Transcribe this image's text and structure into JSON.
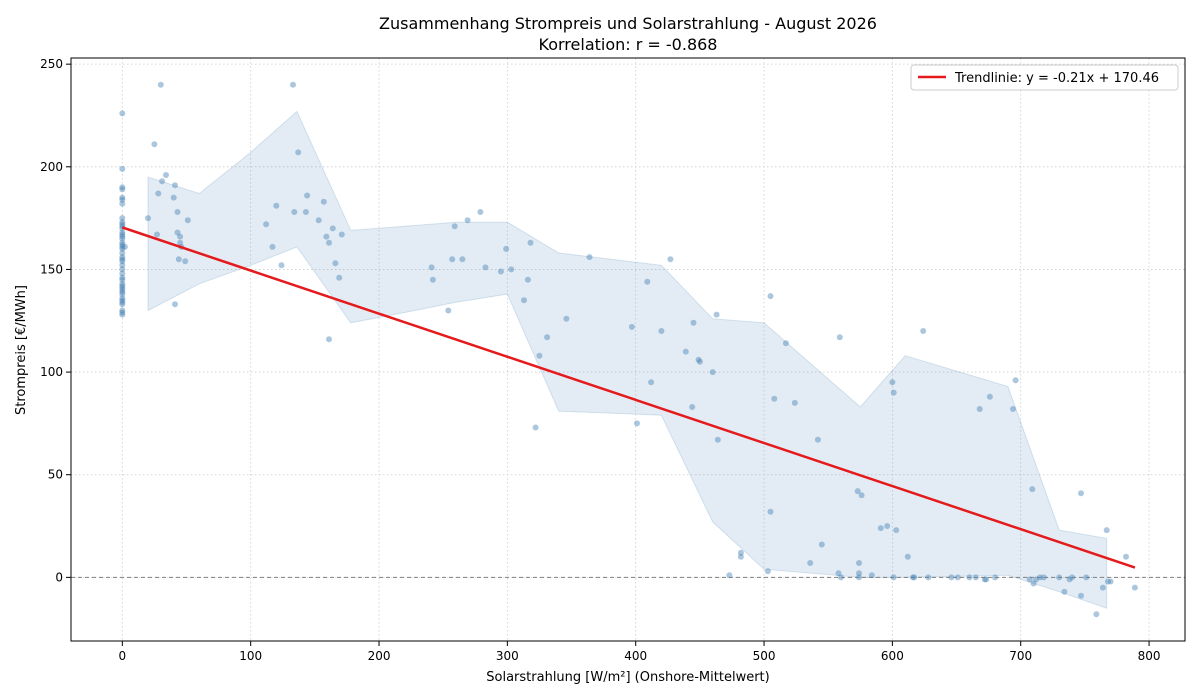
{
  "chart_data": {
    "type": "scatter",
    "title": "Zusammenhang Strompreis und Solarstrahlung - August 2026",
    "subtitle": "Korrelation: r = -0.868",
    "xlabel": "Solarstrahlung [W/m²] (Onshore-Mittelwert)",
    "ylabel": "Strompreis [€/MWh]",
    "xlim": [
      -40,
      828
    ],
    "ylim": [
      -31,
      253
    ],
    "xticks": [
      0,
      100,
      200,
      300,
      400,
      500,
      600,
      700,
      800
    ],
    "yticks": [
      0,
      50,
      100,
      150,
      200,
      250
    ],
    "grid": true,
    "legend_position": "top-right",
    "colors": {
      "points": "#4682b4",
      "band": "#4682b4",
      "trend": "#e41a1c",
      "zero_line": "#808080",
      "grid": "#cccccc"
    },
    "series": [
      {
        "kind": "points",
        "points": [
          [
            0,
            226
          ],
          [
            0,
            199
          ],
          [
            0,
            190
          ],
          [
            0,
            189
          ],
          [
            0,
            185
          ],
          [
            0,
            184
          ],
          [
            0,
            182
          ],
          [
            0,
            175
          ],
          [
            0,
            173
          ],
          [
            0,
            172
          ],
          [
            0,
            171
          ],
          [
            0,
            170
          ],
          [
            0,
            168
          ],
          [
            0,
            167
          ],
          [
            0,
            166
          ],
          [
            0,
            165
          ],
          [
            0,
            163
          ],
          [
            0,
            162
          ],
          [
            0,
            161
          ],
          [
            2,
            161
          ],
          [
            0,
            160
          ],
          [
            0,
            158
          ],
          [
            0,
            156
          ],
          [
            0,
            155
          ],
          [
            0,
            154
          ],
          [
            0,
            152
          ],
          [
            0,
            150
          ],
          [
            0,
            148
          ],
          [
            0,
            146
          ],
          [
            0,
            145
          ],
          [
            0,
            143
          ],
          [
            0,
            142
          ],
          [
            0,
            141
          ],
          [
            0,
            140
          ],
          [
            0,
            139
          ],
          [
            0,
            138
          ],
          [
            0,
            136
          ],
          [
            0,
            135
          ],
          [
            0,
            134
          ],
          [
            0,
            133
          ],
          [
            0,
            130
          ],
          [
            0,
            129
          ],
          [
            0,
            128
          ],
          [
            20,
            175
          ],
          [
            25,
            211
          ],
          [
            27,
            167
          ],
          [
            28,
            187
          ],
          [
            30,
            240
          ],
          [
            31,
            193
          ],
          [
            34,
            196
          ],
          [
            40,
            185
          ],
          [
            41,
            191
          ],
          [
            41,
            133
          ],
          [
            43,
            178
          ],
          [
            43,
            168
          ],
          [
            44,
            155
          ],
          [
            45,
            166
          ],
          [
            45,
            163
          ],
          [
            46,
            161
          ],
          [
            49,
            154
          ],
          [
            51,
            174
          ],
          [
            112,
            172
          ],
          [
            117,
            161
          ],
          [
            120,
            181
          ],
          [
            124,
            152
          ],
          [
            133,
            240
          ],
          [
            134,
            178
          ],
          [
            137,
            207
          ],
          [
            143,
            178
          ],
          [
            144,
            186
          ],
          [
            153,
            174
          ],
          [
            157,
            183
          ],
          [
            159,
            166
          ],
          [
            161,
            163
          ],
          [
            161,
            116
          ],
          [
            164,
            170
          ],
          [
            166,
            153
          ],
          [
            169,
            146
          ],
          [
            171,
            167
          ],
          [
            241,
            151
          ],
          [
            242,
            145
          ],
          [
            254,
            130
          ],
          [
            257,
            155
          ],
          [
            259,
            171
          ],
          [
            265,
            155
          ],
          [
            269,
            174
          ],
          [
            279,
            178
          ],
          [
            283,
            151
          ],
          [
            295,
            149
          ],
          [
            299,
            160
          ],
          [
            303,
            150
          ],
          [
            313,
            135
          ],
          [
            316,
            145
          ],
          [
            318,
            163
          ],
          [
            322,
            73
          ],
          [
            325,
            108
          ],
          [
            331,
            117
          ],
          [
            346,
            126
          ],
          [
            364,
            156
          ],
          [
            397,
            122
          ],
          [
            401,
            75
          ],
          [
            409,
            144
          ],
          [
            412,
            95
          ],
          [
            420,
            120
          ],
          [
            427,
            155
          ],
          [
            439,
            110
          ],
          [
            444,
            83
          ],
          [
            445,
            124
          ],
          [
            449,
            106
          ],
          [
            450,
            105
          ],
          [
            460,
            100
          ],
          [
            463,
            128
          ],
          [
            464,
            67
          ],
          [
            473,
            1
          ],
          [
            482,
            12
          ],
          [
            482,
            10
          ],
          [
            503,
            3
          ],
          [
            505,
            137
          ],
          [
            505,
            32
          ],
          [
            508,
            87
          ],
          [
            517,
            114
          ],
          [
            524,
            85
          ],
          [
            536,
            7
          ],
          [
            542,
            67
          ],
          [
            545,
            16
          ],
          [
            558,
            2
          ],
          [
            559,
            117
          ],
          [
            560,
            0
          ],
          [
            573,
            42
          ],
          [
            574,
            7
          ],
          [
            574,
            2
          ],
          [
            574,
            0
          ],
          [
            576,
            40
          ],
          [
            584,
            1
          ],
          [
            591,
            24
          ],
          [
            596,
            25
          ],
          [
            600,
            95
          ],
          [
            601,
            90
          ],
          [
            601,
            0
          ],
          [
            603,
            23
          ],
          [
            612,
            10
          ],
          [
            616,
            0
          ],
          [
            617,
            0
          ],
          [
            624,
            120
          ],
          [
            628,
            0
          ],
          [
            646,
            0
          ],
          [
            651,
            0
          ],
          [
            660,
            0
          ],
          [
            665,
            0
          ],
          [
            668,
            82
          ],
          [
            672,
            -1
          ],
          [
            673,
            -1
          ],
          [
            676,
            88
          ],
          [
            680,
            0
          ],
          [
            694,
            82
          ],
          [
            696,
            96
          ],
          [
            707,
            -1
          ],
          [
            709,
            43
          ],
          [
            710,
            -3
          ],
          [
            712,
            -1
          ],
          [
            715,
            0
          ],
          [
            718,
            0
          ],
          [
            730,
            0
          ],
          [
            734,
            -7
          ],
          [
            738,
            -1
          ],
          [
            740,
            0
          ],
          [
            747,
            41
          ],
          [
            747,
            -9
          ],
          [
            751,
            0
          ],
          [
            759,
            -18
          ],
          [
            764,
            -5
          ],
          [
            767,
            23
          ],
          [
            768,
            -2
          ],
          [
            770,
            -2
          ],
          [
            782,
            10
          ],
          [
            789,
            -5
          ]
        ]
      }
    ],
    "band": {
      "x": [
        20,
        60,
        100,
        136,
        178,
        220,
        260,
        300,
        340,
        420,
        460,
        500,
        575,
        610,
        690,
        730,
        767
      ],
      "upper": [
        195,
        187,
        207,
        227,
        169,
        171,
        173,
        173,
        158,
        152,
        126,
        124,
        83,
        108,
        93,
        23,
        19
      ],
      "lower": [
        130,
        143,
        152,
        161,
        124,
        129,
        134,
        138,
        81,
        79,
        27,
        4,
        0,
        0,
        1,
        -7,
        -15
      ]
    },
    "trendline": {
      "label": "Trendlinie: y = -0.21x + 170.46",
      "slope": -0.21,
      "intercept": 170.46,
      "x_range": [
        0,
        789
      ]
    },
    "reference_line_y": 0
  }
}
